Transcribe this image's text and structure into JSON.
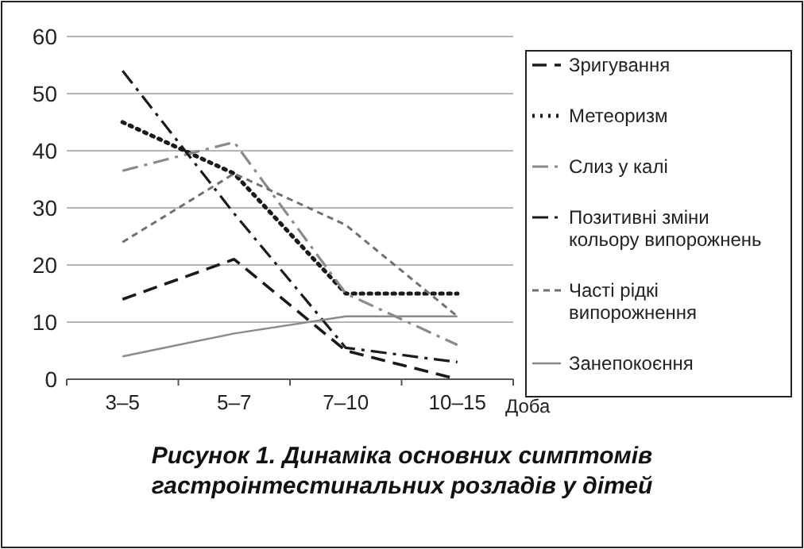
{
  "chart_data": {
    "type": "line",
    "title": "Рисунок 1. Динаміка основних симптомів гастроінтестинальних розладів у дітей",
    "xlabel": "Доба",
    "categories": [
      "3–5",
      "5–7",
      "7–10",
      "10–15"
    ],
    "ylim": [
      0,
      60
    ],
    "yticks": [
      0,
      10,
      20,
      30,
      40,
      50,
      60
    ],
    "grid": "y",
    "legend": "right",
    "series": [
      {
        "name": "Зригування",
        "color": "#1a1a1a",
        "line_style": "dashed",
        "values": [
          14,
          21,
          5,
          0
        ]
      },
      {
        "name": "Метеоризм",
        "color": "#1a1a1a",
        "line_style": "dotted",
        "values": [
          45,
          36,
          15,
          15
        ]
      },
      {
        "name": "Слиз у калі",
        "color": "#8a8a8a",
        "line_style": "dashdot",
        "values": [
          36.5,
          41.5,
          15,
          6
        ]
      },
      {
        "name": "Позитивні зміни кольору випорожнень",
        "color": "#1a1a1a",
        "line_style": "dashdot",
        "values": [
          54,
          29,
          5.5,
          3
        ]
      },
      {
        "name": "Часті рідкі випорожнення",
        "color": "#707070",
        "line_style": "shortdash",
        "values": [
          24,
          36,
          27,
          11
        ]
      },
      {
        "name": "Занепокоєння",
        "color": "#8a8a8a",
        "line_style": "solid",
        "values": [
          4,
          8,
          11,
          11
        ]
      }
    ]
  }
}
